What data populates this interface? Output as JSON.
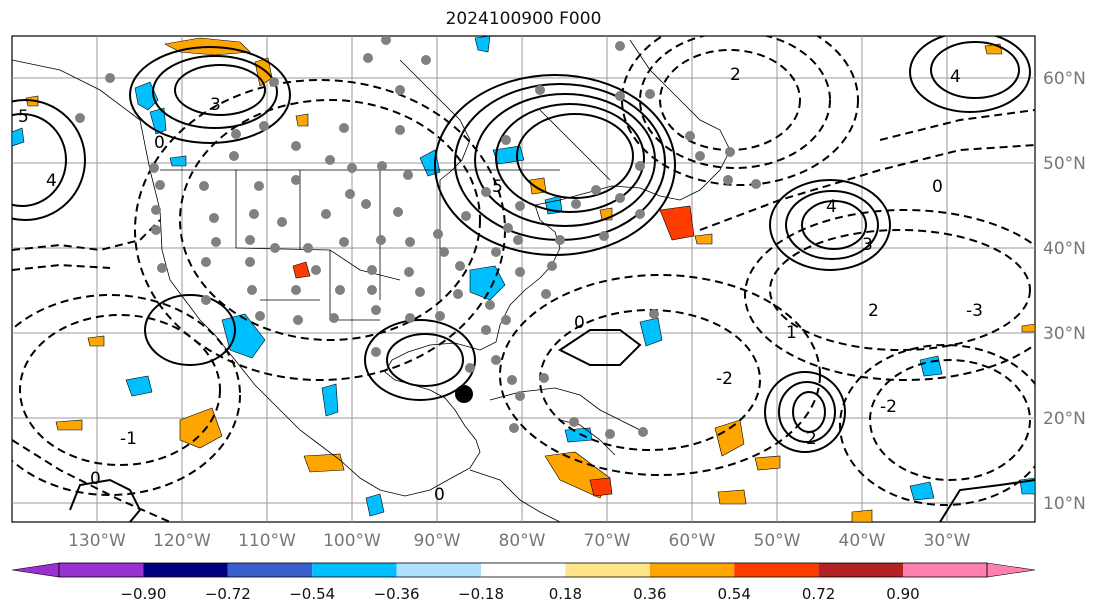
{
  "title": "2024100900 F000",
  "map": {
    "lon_labels": [
      "130°W",
      "120°W",
      "110°W",
      "100°W",
      "90°W",
      "80°W",
      "70°W",
      "60°W",
      "50°W",
      "40°W",
      "30°W"
    ],
    "lat_labels": [
      "60°N",
      "50°N",
      "40°N",
      "30°N",
      "20°N",
      "10°N"
    ],
    "gridlines": true,
    "marker": "tropical cyclone position (black dot)",
    "contour_labels": [
      "0",
      "1",
      "2",
      "3",
      "4",
      "5",
      "-1",
      "-2",
      "-3"
    ]
  },
  "colorbar": {
    "ticks": [
      "−0.90",
      "−0.72",
      "−0.54",
      "−0.36",
      "−0.18",
      "0.18",
      "0.36",
      "0.54",
      "0.72",
      "0.90"
    ],
    "colors": [
      "#9b30d0",
      "#00007f",
      "#3a5fcd",
      "#00bfff",
      "#aee2ff",
      "#ffffff",
      "#ffe58a",
      "#ffa500",
      "#ff3c00",
      "#b22222",
      "#ff80b0"
    ]
  }
}
